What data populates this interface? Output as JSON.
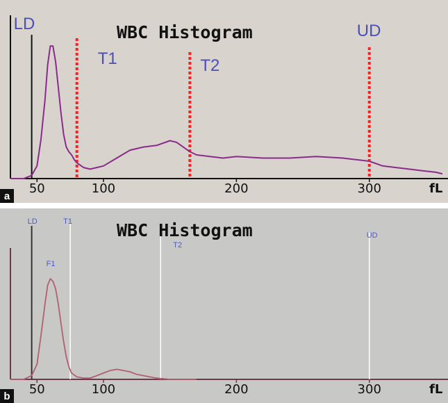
{
  "chart_data": [
    {
      "panel_label": "a",
      "type": "line",
      "title": "WBC Histogram",
      "x_unit": "fL",
      "x_ticks": [
        "50",
        "100",
        "200",
        "300"
      ],
      "xlim": [
        30,
        355
      ],
      "series": [
        {
          "color": "#8a2a8a",
          "x": [
            30,
            40,
            46,
            50,
            53,
            56,
            58,
            60,
            62,
            64,
            66,
            68,
            70,
            72,
            74,
            76,
            78,
            80,
            85,
            90,
            95,
            100,
            110,
            120,
            130,
            140,
            150,
            155,
            160,
            165,
            170,
            180,
            190,
            200,
            220,
            240,
            260,
            280,
            290,
            300,
            310,
            320,
            330,
            340,
            350,
            355
          ],
          "y": [
            0,
            0,
            2,
            8,
            25,
            50,
            72,
            84,
            84,
            74,
            58,
            42,
            28,
            20,
            17,
            15,
            12,
            10,
            7,
            6,
            7,
            8,
            13,
            18,
            20,
            21,
            24,
            23,
            20,
            17,
            15,
            14,
            13,
            14,
            13,
            13,
            14,
            13,
            12,
            11,
            8,
            7,
            6,
            5,
            4,
            3
          ]
        }
      ],
      "markers": [
        {
          "label": "LD",
          "x": 46,
          "style": "solid",
          "color": "#111111"
        },
        {
          "label": "T1",
          "x": 80,
          "style": "dotted",
          "color": "#ff2020"
        },
        {
          "label": "T2",
          "x": 165,
          "style": "dotted",
          "color": "#ff2020"
        },
        {
          "label": "UD",
          "x": 300,
          "style": "dotted",
          "color": "#ff2020"
        }
      ],
      "marker_label_color": "#4a4fb8"
    },
    {
      "panel_label": "b",
      "type": "line",
      "title": "WBC Histogram",
      "x_unit": "fL",
      "x_ticks": [
        "50",
        "100",
        "200",
        "300"
      ],
      "xlim": [
        30,
        355
      ],
      "series": [
        {
          "color": "#b06070",
          "x": [
            30,
            40,
            46,
            50,
            53,
            56,
            58,
            60,
            62,
            64,
            66,
            68,
            70,
            72,
            74,
            76,
            80,
            85,
            90,
            95,
            100,
            105,
            110,
            115,
            120,
            125,
            130,
            140,
            150,
            160,
            170
          ],
          "y": [
            0,
            0,
            3,
            12,
            35,
            60,
            75,
            80,
            78,
            72,
            60,
            45,
            30,
            18,
            10,
            5,
            2,
            1,
            1,
            3,
            5,
            7,
            8,
            7,
            6,
            4,
            3,
            1,
            0,
            0,
            0
          ]
        }
      ],
      "markers": [
        {
          "label": "LD",
          "x": 46,
          "style": "solid",
          "color": "#333333"
        },
        {
          "label": "T1",
          "x": 75,
          "style": "solid",
          "color": "#ffffff"
        },
        {
          "label": "T2",
          "x": 143,
          "style": "solid",
          "color": "#ffffff"
        },
        {
          "label": "UD",
          "x": 300,
          "style": "solid",
          "color": "#ffffff"
        }
      ],
      "peak_label": "F1",
      "marker_label_color": "#4a5ad0"
    }
  ],
  "panel_labels": [
    "a",
    "b"
  ]
}
